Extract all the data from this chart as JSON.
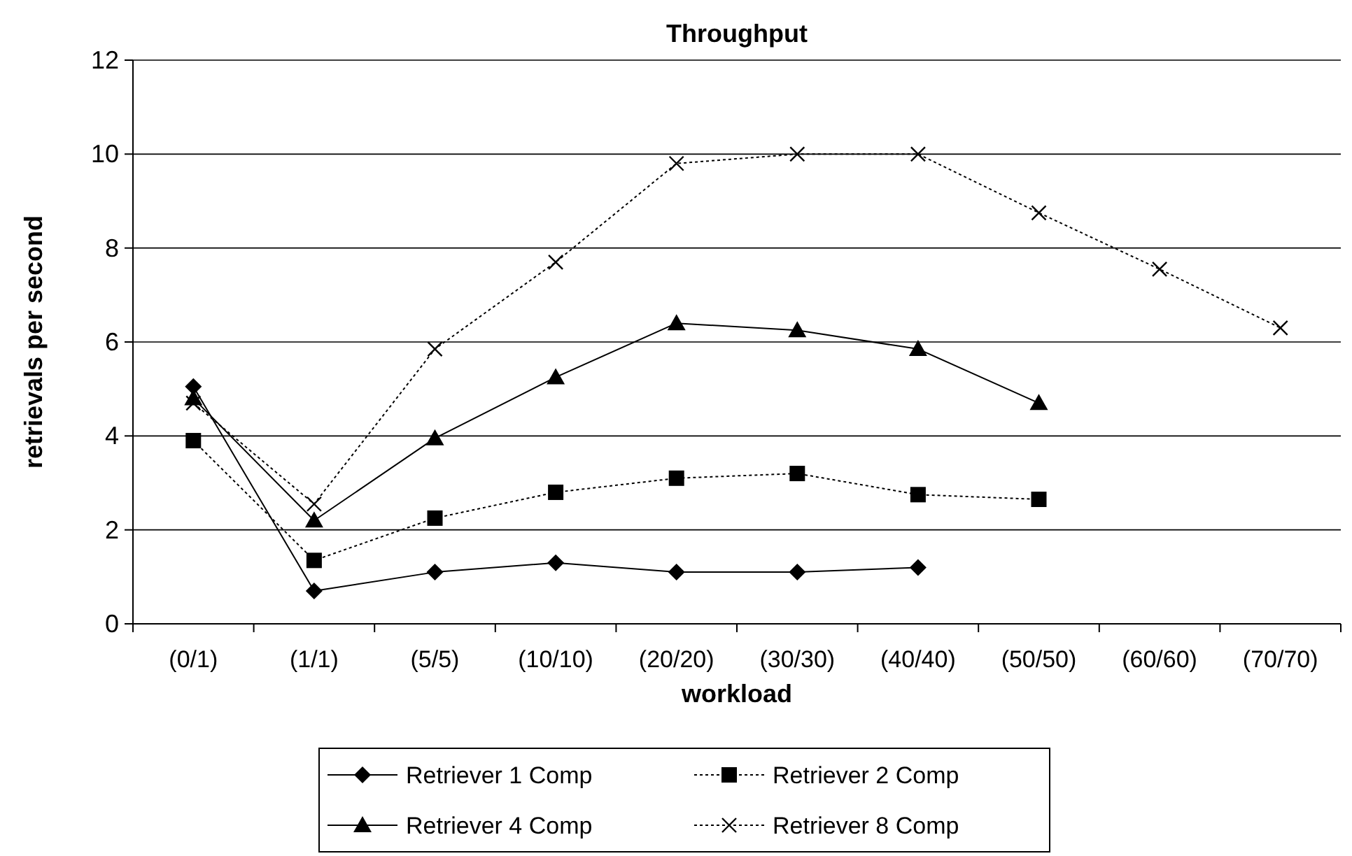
{
  "chart_data": {
    "type": "line",
    "title": "Throughput",
    "xlabel": "workload",
    "ylabel": "retrievals per second",
    "categories": [
      "(0/1)",
      "(1/1)",
      "(5/5)",
      "(10/10)",
      "(20/20)",
      "(30/30)",
      "(40/40)",
      "(50/50)",
      "(60/60)",
      "(70/70)"
    ],
    "ylim": [
      0,
      12
    ],
    "yticks": [
      0,
      2,
      4,
      6,
      8,
      10,
      12
    ],
    "grid": "y",
    "legend": "bottom",
    "series": [
      {
        "name": "Retriever 1 Comp",
        "color": "#000000",
        "marker": "diamond",
        "line_style": "solid",
        "values": [
          5.05,
          0.7,
          1.1,
          1.3,
          1.1,
          1.1,
          1.2,
          null,
          null,
          null
        ]
      },
      {
        "name": "Retriever 2 Comp",
        "color": "#000000",
        "marker": "square",
        "line_style": "dotted",
        "values": [
          3.9,
          1.35,
          2.25,
          2.8,
          3.1,
          3.2,
          2.75,
          2.65,
          null,
          null
        ]
      },
      {
        "name": "Retriever 4 Comp",
        "color": "#000000",
        "marker": "triangle",
        "line_style": "solid",
        "values": [
          4.8,
          2.2,
          3.95,
          5.25,
          6.4,
          6.25,
          5.85,
          4.7,
          null,
          null
        ]
      },
      {
        "name": "Retriever 8 Comp",
        "color": "#000000",
        "marker": "cross",
        "line_style": "dotted",
        "values": [
          4.7,
          2.55,
          5.85,
          7.7,
          9.8,
          10.0,
          10.0,
          8.75,
          7.55,
          6.3
        ]
      }
    ]
  }
}
